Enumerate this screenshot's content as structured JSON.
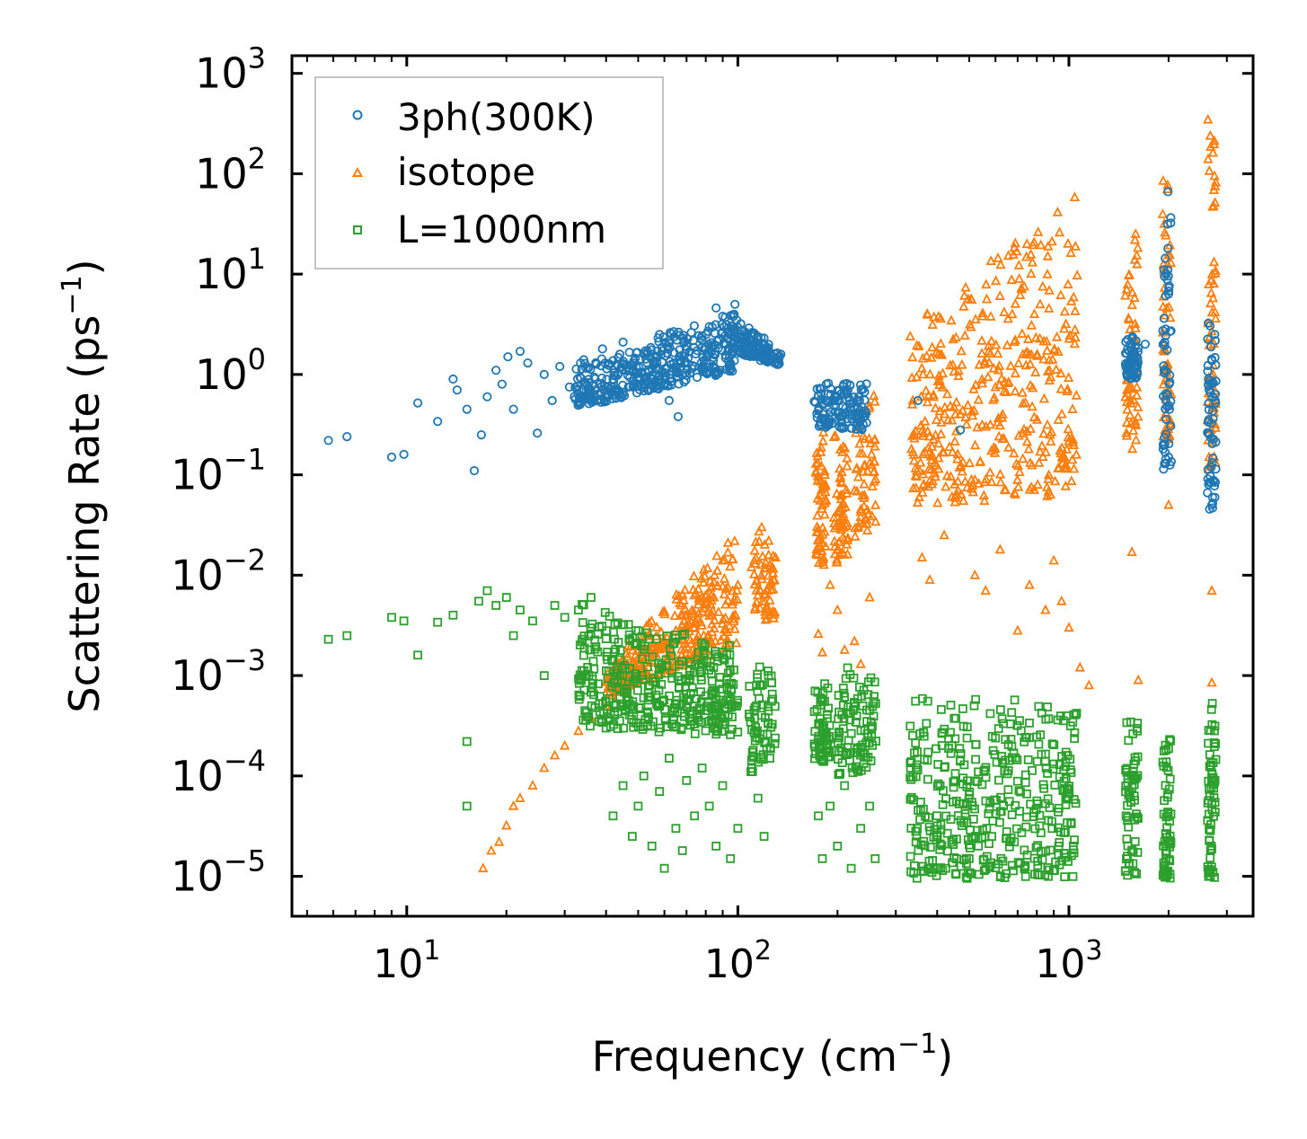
{
  "chart_data": {
    "type": "scatter",
    "title": "",
    "xlabel": "Frequency (cm",
    "xlabel_sup": "−1",
    "xlabel_end": ")",
    "ylabel": "Scattering Rate (ps",
    "ylabel_sup": "−1",
    "ylabel_end": ")",
    "xscale": "log",
    "yscale": "log",
    "xlim": [
      4.5,
      3600
    ],
    "ylim": [
      4e-06,
      1500
    ],
    "x_ticks": [
      {
        "base": "10",
        "exp": "1",
        "value": 10
      },
      {
        "base": "10",
        "exp": "2",
        "value": 100
      },
      {
        "base": "10",
        "exp": "3",
        "value": 1000
      }
    ],
    "y_ticks": [
      {
        "base": "10",
        "exp": "−5",
        "value": 1e-05
      },
      {
        "base": "10",
        "exp": "−4",
        "value": 0.0001
      },
      {
        "base": "10",
        "exp": "−3",
        "value": 0.001
      },
      {
        "base": "10",
        "exp": "−2",
        "value": 0.01
      },
      {
        "base": "10",
        "exp": "−1",
        "value": 0.1
      },
      {
        "base": "10",
        "exp": "0",
        "value": 1
      },
      {
        "base": "10",
        "exp": "1",
        "value": 10
      },
      {
        "base": "10",
        "exp": "2",
        "value": 100
      },
      {
        "base": "10",
        "exp": "3",
        "value": 1000
      }
    ],
    "legend_position": "top-left",
    "series": [
      {
        "name": "3ph(300K)",
        "marker": "circle",
        "color": "#1f77b4",
        "points": [
          [
            5.8,
            0.22
          ],
          [
            6.6,
            0.24
          ],
          [
            9.0,
            0.15
          ],
          [
            9.8,
            0.16
          ],
          [
            10.8,
            0.52
          ],
          [
            12.4,
            0.34
          ],
          [
            13.8,
            0.9
          ],
          [
            14.2,
            0.7
          ],
          [
            15.2,
            0.45
          ],
          [
            16.0,
            0.11
          ],
          [
            16.8,
            0.25
          ],
          [
            17.5,
            0.6
          ],
          [
            18.6,
            1.1
          ],
          [
            19.4,
            0.8
          ],
          [
            20.2,
            1.5
          ],
          [
            21.0,
            0.45
          ],
          [
            22.0,
            1.7
          ],
          [
            23.2,
            1.3
          ],
          [
            24.8,
            0.26
          ],
          [
            26.0,
            1.0
          ],
          [
            27.5,
            0.55
          ],
          [
            29.0,
            1.2
          ],
          [
            31.0,
            0.75
          ],
          [
            33.5,
            1.3
          ],
          [
            36.0,
            0.6
          ],
          [
            39.0,
            1.8
          ],
          [
            42.0,
            0.9
          ],
          [
            45.0,
            2.1
          ],
          [
            48.5,
            1.1
          ],
          [
            52.0,
            1.6
          ],
          [
            55.0,
            0.8
          ],
          [
            58.0,
            2.5
          ],
          [
            62.0,
            0.55
          ],
          [
            66.0,
            0.38
          ],
          [
            70.0,
            1.9
          ],
          [
            74.0,
            1.2
          ],
          [
            78.0,
            2.2
          ],
          [
            82.0,
            3.0
          ],
          [
            86.0,
            4.6
          ],
          [
            90.0,
            3.8
          ],
          [
            94.0,
            2.7
          ],
          [
            98.0,
            5.0
          ],
          [
            102.0,
            3.2
          ],
          [
            108.0,
            2.9
          ],
          [
            114.0,
            2.3
          ],
          [
            120.0,
            1.8
          ],
          [
            126.0,
            1.5
          ],
          [
            130.0,
            1.3
          ],
          [
            175.0,
            0.62
          ],
          [
            185.0,
            0.8
          ],
          [
            200.0,
            0.55
          ],
          [
            215.0,
            0.7
          ],
          [
            230.0,
            0.48
          ],
          [
            240.0,
            0.38
          ],
          [
            350.0,
            0.55
          ],
          [
            470.0,
            0.28
          ],
          [
            1550.0,
            1.5
          ],
          [
            1700.0,
            2.0
          ],
          [
            2000.0,
            0.15
          ],
          [
            2700.0,
            0.05
          ]
        ],
        "columns": [
          {
            "x": [
              32,
              100
            ],
            "y_lo_start": 0.45,
            "y_lo_end": 1.1,
            "y_hi_start": 1.4,
            "y_hi_end": 4.2
          },
          {
            "x": [
              100,
              135
            ],
            "y_lo_start": 1.6,
            "y_lo_end": 1.2,
            "y_hi_start": 3.5,
            "y_hi_end": 1.8
          },
          {
            "x": [
              170,
              245
            ],
            "y_lo_start": 0.3,
            "y_lo_end": 0.28,
            "y_hi_start": 0.8,
            "y_hi_end": 0.95
          },
          {
            "x": [
              1480,
              1620
            ],
            "y_lo_start": 0.9,
            "y_lo_end": 0.9,
            "y_hi_start": 2.6,
            "y_hi_end": 2.6
          },
          {
            "x": [
              1920,
              2040
            ],
            "y_lo_start": 0.1,
            "y_lo_end": 0.1,
            "y_hi_start": 70,
            "y_hi_end": 70
          },
          {
            "x": [
              2620,
              2780
            ],
            "y_lo_start": 0.045,
            "y_lo_end": 0.045,
            "y_hi_start": 3.5,
            "y_hi_end": 3.5
          }
        ]
      },
      {
        "name": "isotope",
        "marker": "triangle",
        "color": "#ff7f0e",
        "points": [
          [
            17.0,
            1.2e-05
          ],
          [
            18.0,
            1.8e-05
          ],
          [
            19.0,
            2.2e-05
          ],
          [
            20.0,
            3.2e-05
          ],
          [
            21.0,
            5e-05
          ],
          [
            22.0,
            6e-05
          ],
          [
            24.0,
            8e-05
          ],
          [
            26.0,
            0.00012
          ],
          [
            28.0,
            0.00016
          ],
          [
            30.0,
            0.0002
          ],
          [
            33.0,
            0.00028
          ],
          [
            36.0,
            0.00038
          ],
          [
            40.0,
            0.0005
          ],
          [
            45.0,
            0.0007
          ],
          [
            50.0,
            0.001
          ],
          [
            55.0,
            0.0014
          ],
          [
            60.0,
            0.002
          ],
          [
            65.0,
            0.0028
          ],
          [
            70.0,
            0.004
          ],
          [
            78.0,
            0.006
          ],
          [
            85.0,
            0.01
          ],
          [
            90.0,
            0.014
          ],
          [
            100.0,
            0.008
          ],
          [
            110.0,
            0.012
          ],
          [
            118.0,
            0.03
          ],
          [
            124.0,
            0.022
          ],
          [
            130.0,
            0.015
          ],
          [
            175.0,
            0.0026
          ],
          [
            180.0,
            0.0017
          ],
          [
            190.0,
            0.008
          ],
          [
            200.0,
            0.0045
          ],
          [
            210.0,
            0.0018
          ],
          [
            225.0,
            0.0022
          ],
          [
            235.0,
            0.0013
          ],
          [
            250.0,
            0.006
          ],
          [
            360.0,
            0.015
          ],
          [
            380.0,
            0.009
          ],
          [
            420.0,
            0.025
          ],
          [
            480.0,
            0.055
          ],
          [
            520.0,
            0.01
          ],
          [
            560.0,
            0.007
          ],
          [
            620.0,
            0.018
          ],
          [
            700.0,
            0.0028
          ],
          [
            760.0,
            0.008
          ],
          [
            850.0,
            0.0045
          ],
          [
            900.0,
            0.014
          ],
          [
            950.0,
            0.0055
          ],
          [
            1000.0,
            0.003
          ],
          [
            1080.0,
            0.0012
          ],
          [
            1150.0,
            0.0008
          ],
          [
            1550.0,
            0.017
          ],
          [
            1620.0,
            0.0009
          ],
          [
            2000.0,
            0.05
          ],
          [
            2700.0,
            0.007
          ],
          [
            2700.0,
            0.00085
          ]
        ],
        "columns": [
          {
            "x": [
              40,
              100
            ],
            "y_lo_start": 0.0006,
            "y_lo_end": 0.002,
            "y_hi_start": 0.0012,
            "y_hi_end": 0.03
          },
          {
            "x": [
              112,
              130
            ],
            "y_lo_start": 0.004,
            "y_lo_end": 0.003,
            "y_hi_start": 0.04,
            "y_hi_end": 0.015
          },
          {
            "x": [
              172,
              185
            ],
            "y_lo_start": 0.01,
            "y_lo_end": 0.012,
            "y_hi_start": 0.2,
            "y_hi_end": 0.3
          },
          {
            "x": [
              195,
              215
            ],
            "y_lo_start": 0.012,
            "y_lo_end": 0.015,
            "y_hi_start": 0.35,
            "y_hi_end": 0.25
          },
          {
            "x": [
              225,
              262
            ],
            "y_lo_start": 0.02,
            "y_lo_end": 0.03,
            "y_hi_start": 0.6,
            "y_hi_end": 1.0
          },
          {
            "x": [
              330,
              1060
            ],
            "y_lo_start": 0.05,
            "y_lo_end": 0.06,
            "y_hi_start": 3.0,
            "y_hi_end": 75
          },
          {
            "x": [
              1480,
              1620
            ],
            "y_lo_start": 0.15,
            "y_lo_end": 0.2,
            "y_hi_start": 20,
            "y_hi_end": 45
          },
          {
            "x": [
              1920,
              2040
            ],
            "y_lo_start": 0.2,
            "y_lo_end": 0.25,
            "y_hi_start": 95,
            "y_hi_end": 95
          },
          {
            "x": [
              2620,
              2780
            ],
            "y_lo_start": 0.1,
            "y_lo_end": 0.1,
            "y_hi_start": 500,
            "y_hi_end": 500
          }
        ]
      },
      {
        "name": "L=1000nm",
        "marker": "square",
        "color": "#2ca02c",
        "points": [
          [
            5.8,
            0.0023
          ],
          [
            6.6,
            0.0025
          ],
          [
            9.0,
            0.0038
          ],
          [
            9.8,
            0.0035
          ],
          [
            10.8,
            0.0016
          ],
          [
            12.4,
            0.0034
          ],
          [
            13.8,
            0.004
          ],
          [
            15.2,
            0.00022
          ],
          [
            15.2,
            5e-05
          ],
          [
            16.5,
            0.0055
          ],
          [
            17.5,
            0.007
          ],
          [
            18.6,
            0.005
          ],
          [
            20.0,
            0.006
          ],
          [
            21.0,
            0.0025
          ],
          [
            22.0,
            0.0045
          ],
          [
            24.0,
            0.0035
          ],
          [
            26.0,
            0.001
          ],
          [
            28.0,
            0.005
          ],
          [
            30.0,
            0.0038
          ],
          [
            33.0,
            0.0045
          ],
          [
            36.0,
            0.006
          ],
          [
            40.0,
            0.0003
          ],
          [
            42.0,
            4e-05
          ],
          [
            45.0,
            8e-05
          ],
          [
            48.0,
            2.5e-05
          ],
          [
            50.0,
            5e-05
          ],
          [
            52.0,
            0.0001
          ],
          [
            55.0,
            2e-05
          ],
          [
            58.0,
            7e-05
          ],
          [
            60.0,
            1.2e-05
          ],
          [
            62.0,
            0.00015
          ],
          [
            65.0,
            3e-05
          ],
          [
            68.0,
            1.8e-05
          ],
          [
            70.0,
            9e-05
          ],
          [
            74.0,
            4e-05
          ],
          [
            78.0,
            0.00012
          ],
          [
            82.0,
            5e-05
          ],
          [
            86.0,
            2e-05
          ],
          [
            90.0,
            8e-05
          ],
          [
            95.0,
            1.5e-05
          ],
          [
            100.0,
            3e-05
          ],
          [
            115.0,
            6e-05
          ],
          [
            120.0,
            2.5e-05
          ],
          [
            125.0,
            0.00015
          ],
          [
            175.0,
            4e-05
          ],
          [
            180.0,
            1.5e-05
          ],
          [
            190.0,
            5e-05
          ],
          [
            200.0,
            2e-05
          ],
          [
            210.0,
            8e-05
          ],
          [
            220.0,
            1.2e-05
          ],
          [
            235.0,
            3e-05
          ],
          [
            250.0,
            5e-05
          ],
          [
            260.0,
            1.5e-05
          ]
        ],
        "columns": [
          {
            "x": [
              33,
              100
            ],
            "y_lo_start": 0.0003,
            "y_lo_end": 0.00025,
            "y_hi_start": 0.0055,
            "y_hi_end": 0.002
          },
          {
            "x": [
              108,
              130
            ],
            "y_lo_start": 0.0001,
            "y_lo_end": 0.0002,
            "y_hi_start": 0.001,
            "y_hi_end": 0.0018
          },
          {
            "x": [
              170,
              190
            ],
            "y_lo_start": 0.00015,
            "y_lo_end": 0.00012,
            "y_hi_start": 0.0008,
            "y_hi_end": 0.0009
          },
          {
            "x": [
              200,
              262
            ],
            "y_lo_start": 0.0001,
            "y_lo_end": 0.00012,
            "y_hi_start": 0.0012,
            "y_hi_end": 0.0015
          },
          {
            "x": [
              330,
              1060
            ],
            "y_lo_start": 9.5e-06,
            "y_lo_end": 9.5e-06,
            "y_hi_start": 0.0006,
            "y_hi_end": 0.0007
          },
          {
            "x": [
              1480,
              1620
            ],
            "y_lo_start": 9.5e-06,
            "y_lo_end": 9.5e-06,
            "y_hi_start": 0.0004,
            "y_hi_end": 0.0004
          },
          {
            "x": [
              1920,
              2040
            ],
            "y_lo_start": 9.5e-06,
            "y_lo_end": 9.5e-06,
            "y_hi_start": 0.0003,
            "y_hi_end": 0.0003
          },
          {
            "x": [
              2620,
              2780
            ],
            "y_lo_start": 9.5e-06,
            "y_lo_end": 9.5e-06,
            "y_hi_start": 0.0006,
            "y_hi_end": 0.0006
          }
        ]
      }
    ]
  }
}
